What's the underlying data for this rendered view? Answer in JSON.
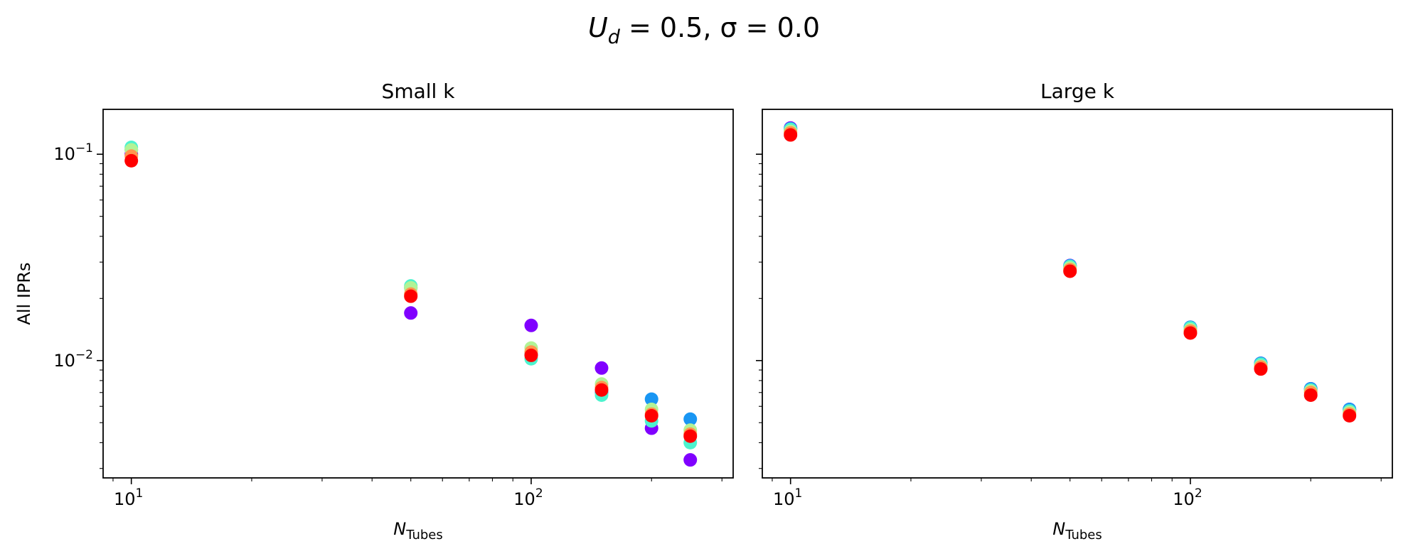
{
  "figure": {
    "suptitle_main": "U",
    "suptitle_sub": "d",
    "suptitle_rest": " = 0.5, σ = 0.0"
  },
  "colors": {
    "series": [
      "#8000ff",
      "#1996f3",
      "#4df3ce",
      "#b2f396",
      "#ff964f",
      "#ff0000"
    ]
  },
  "chart_data": [
    {
      "type": "scatter",
      "title": "Small k",
      "xlabel_main": "N",
      "xlabel_sub": "Tubes",
      "ylabel": "All IPRs",
      "xscale": "log",
      "yscale": "log",
      "xlim": [
        8.5,
        320
      ],
      "ylim": [
        0.0027,
        0.165
      ],
      "xticks": [
        {
          "base": "10",
          "exp": "1"
        },
        {
          "base": "10",
          "exp": "2"
        }
      ],
      "yticks": [
        {
          "base": "10",
          "exp": "−2"
        },
        {
          "base": "10",
          "exp": "−1"
        }
      ],
      "x": [
        10,
        50,
        100,
        150,
        200,
        250
      ],
      "series": [
        {
          "values": [
            0.1,
            0.017,
            0.0148,
            0.0092,
            0.0047,
            0.0033
          ]
        },
        {
          "values": [
            0.105,
            0.0225,
            0.0107,
            0.007,
            0.0065,
            0.0052
          ]
        },
        {
          "values": [
            0.108,
            0.023,
            0.0102,
            0.0068,
            0.0051,
            0.004
          ]
        },
        {
          "values": [
            0.105,
            0.0225,
            0.0115,
            0.0077,
            0.0058,
            0.0046
          ]
        },
        {
          "values": [
            0.098,
            0.021,
            0.011,
            0.0074,
            0.0055,
            0.0044
          ]
        },
        {
          "values": [
            0.093,
            0.0205,
            0.0106,
            0.0072,
            0.0054,
            0.0043
          ]
        }
      ]
    },
    {
      "type": "scatter",
      "title": "Large k",
      "xlabel_main": "N",
      "xlabel_sub": "Tubes",
      "ylabel": "",
      "xscale": "log",
      "yscale": "log",
      "xlim": [
        8.5,
        320
      ],
      "ylim": [
        0.0027,
        0.165
      ],
      "xticks": [
        {
          "base": "10",
          "exp": "1"
        },
        {
          "base": "10",
          "exp": "2"
        }
      ],
      "yticks": [],
      "x": [
        10,
        50,
        100,
        150,
        200,
        250
      ],
      "series": [
        {
          "values": [
            0.134,
            0.0289,
            0.0145,
            0.0097,
            0.0073,
            0.0058
          ]
        },
        {
          "values": [
            0.133,
            0.0288,
            0.0145,
            0.0097,
            0.0073,
            0.0058
          ]
        },
        {
          "values": [
            0.132,
            0.0286,
            0.0144,
            0.0096,
            0.0072,
            0.0057
          ]
        },
        {
          "values": [
            0.129,
            0.0281,
            0.0141,
            0.0094,
            0.0071,
            0.0056
          ]
        },
        {
          "values": [
            0.127,
            0.0276,
            0.0139,
            0.0093,
            0.007,
            0.0055
          ]
        },
        {
          "values": [
            0.124,
            0.0271,
            0.0136,
            0.0091,
            0.0068,
            0.0054
          ]
        }
      ]
    }
  ]
}
